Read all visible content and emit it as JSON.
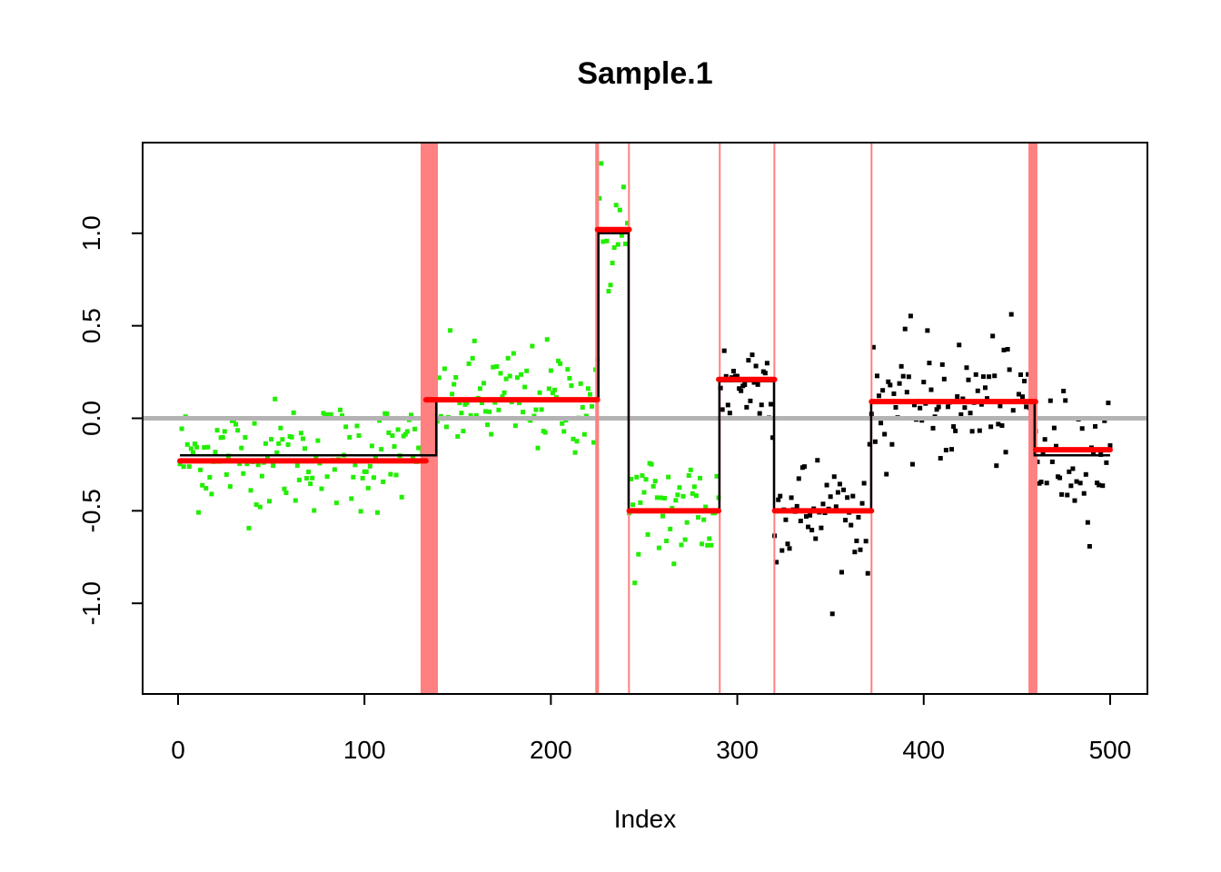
{
  "chart_data": {
    "type": "scatter",
    "title": "Sample.1",
    "xlabel": "Index",
    "ylabel": "",
    "xlim": [
      -19,
      520
    ],
    "ylim": [
      -1.49,
      1.49
    ],
    "x_ticks": [
      0,
      100,
      200,
      300,
      400,
      500
    ],
    "x_tick_labels": [
      "0",
      "100",
      "200",
      "300",
      "400",
      "500"
    ],
    "y_ticks": [
      -1.0,
      -0.5,
      0.0,
      0.5,
      1.0
    ],
    "y_tick_labels": [
      "-1.0",
      "-0.5",
      "0.0",
      "0.5",
      "1.0"
    ],
    "reference_line": {
      "y": 0,
      "color": "#b3b3b3"
    },
    "colors": {
      "green_points": "#22ee00",
      "black_points": "#000000",
      "segment_fit": "#000000",
      "segment_mean": "#ff0000",
      "breakpoint_band": "#ff8080"
    },
    "segments": [
      {
        "start": 1,
        "end": 138.5,
        "fit": -0.2,
        "mean": -0.23,
        "mean_start": 1,
        "mean_end": 133,
        "sd": 0.15,
        "point_color": "green"
      },
      {
        "start": 138.5,
        "end": 225.5,
        "fit": 0.1,
        "mean": 0.1,
        "mean_start": 133,
        "mean_end": 225,
        "sd": 0.15,
        "point_color": "green"
      },
      {
        "start": 225.5,
        "end": 241.7,
        "fit": 1.0,
        "mean": 1.02,
        "mean_start": 225,
        "mean_end": 242,
        "sd": 0.2,
        "point_color": "green"
      },
      {
        "start": 241.7,
        "end": 290.4,
        "fit": -0.5,
        "mean": -0.5,
        "mean_start": 242,
        "mean_end": 290,
        "sd": 0.17,
        "point_color": "green"
      },
      {
        "start": 290.4,
        "end": 319.7,
        "fit": 0.2,
        "mean": 0.21,
        "mean_start": 290,
        "mean_end": 320,
        "sd": 0.14,
        "point_color": "black"
      },
      {
        "start": 319.7,
        "end": 371.8,
        "fit": -0.5,
        "mean": -0.5,
        "mean_start": 320,
        "mean_end": 372,
        "sd": 0.16,
        "point_color": "black"
      },
      {
        "start": 371.8,
        "end": 459.5,
        "fit": 0.09,
        "mean": 0.09,
        "mean_start": 372,
        "mean_end": 460,
        "sd": 0.17,
        "point_color": "black"
      },
      {
        "start": 459.5,
        "end": 500,
        "fit": -0.2,
        "mean": -0.17,
        "mean_start": 460,
        "mean_end": 500,
        "sd": 0.17,
        "point_color": "black"
      }
    ],
    "breakpoint_intervals": [
      [
        130.1,
        139.4
      ],
      [
        223.8,
        225.8
      ],
      [
        241.4,
        242.1
      ],
      [
        290.1,
        290.7
      ],
      [
        319.4,
        320.0
      ],
      [
        371.5,
        372.1
      ],
      [
        456.2,
        461.0
      ]
    ],
    "n_points": 500
  }
}
